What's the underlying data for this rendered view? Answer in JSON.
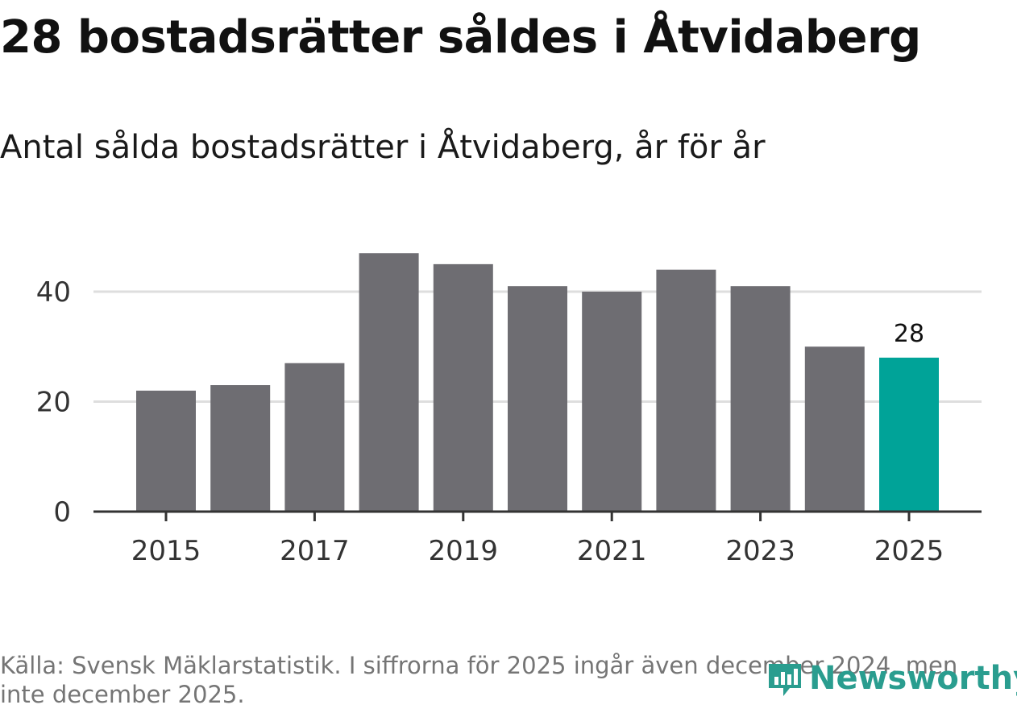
{
  "title": "28 bostadsrätter såldes i Åtvidaberg",
  "subtitle": "Antal sålda bostadsrätter i Åtvidaberg, år för år",
  "source": "Källa: Svensk Mäklarstatistik. I siffrorna för 2025 ingår även december 2024, men inte december 2025.",
  "brand": {
    "name": "Newsworthy",
    "icon": "newsworthy-logo-icon"
  },
  "colors": {
    "bar": "#6e6d72",
    "highlight": "#00a398",
    "grid": "#dedede",
    "axis": "#333333"
  },
  "chart_data": {
    "type": "bar",
    "categories": [
      "2015",
      "2016",
      "2017",
      "2018",
      "2019",
      "2020",
      "2021",
      "2022",
      "2023",
      "2024",
      "2025"
    ],
    "values": [
      22,
      23,
      27,
      47,
      45,
      41,
      40,
      44,
      41,
      30,
      28
    ],
    "highlight_category": "2025",
    "data_labels": [
      {
        "category": "2025",
        "text": "28"
      }
    ],
    "x_tick_labels": [
      "2015",
      "2017",
      "2019",
      "2021",
      "2023",
      "2025"
    ],
    "y_ticks": [
      0,
      20,
      40
    ],
    "y_tick_labels": [
      "0",
      "20",
      "40"
    ],
    "ylim": [
      0,
      50
    ],
    "title": "28 bostadsrätter såldes i Åtvidaberg",
    "subtitle": "Antal sålda bostadsrätter i Åtvidaberg, år för år",
    "xlabel": "",
    "ylabel": "",
    "grid": true
  }
}
